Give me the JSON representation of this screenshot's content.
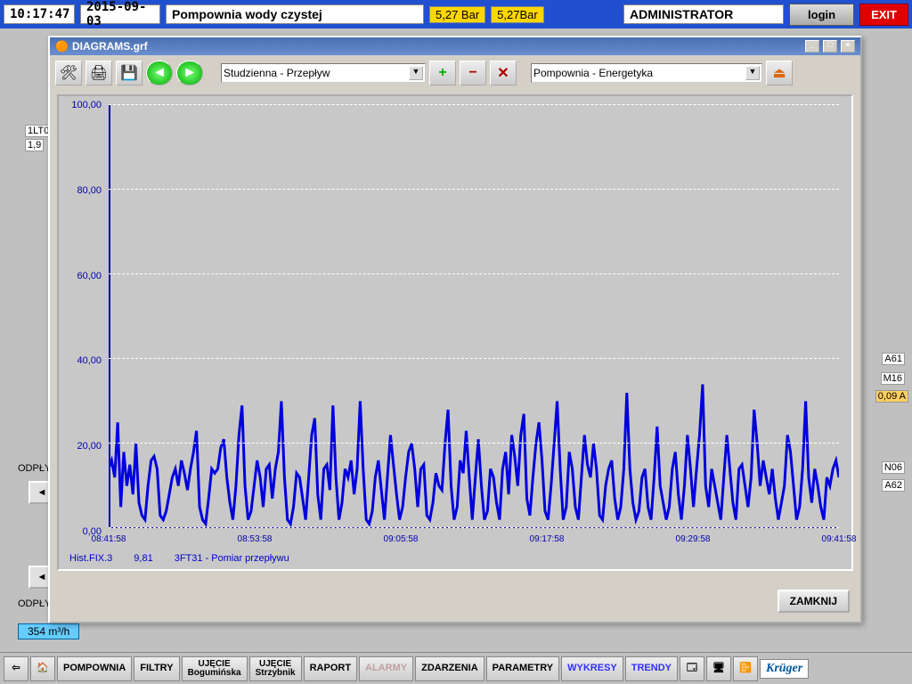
{
  "topbar": {
    "time": "10:17:47",
    "date": "2015-09-03",
    "title": "Pompownia wody czystej",
    "bar1": "5,27 Bar",
    "bar2": "5,27Bar",
    "user": "ADMINISTRATOR",
    "login": "login",
    "exit": "EXIT"
  },
  "bg": {
    "l1": "1LT0",
    "l2": "1,9",
    "l3": "ODPŁY",
    "l4": "ODPŁY",
    "flow": "354 m³/h",
    "r1": "A61",
    "r2": "M16",
    "r3": "0,09 A",
    "r3_bg": "#ffd060",
    "r4": "N06",
    "r5": "A62"
  },
  "dialog": {
    "title": "DIAGRAMS.grf",
    "dd1": "Studzienna - Przepływ",
    "dd2": "Pompownia - Energetyka",
    "close": "ZAMKNIJ"
  },
  "chart": {
    "type": "line",
    "series_color": "#0000dd",
    "label_color": "#0000aa",
    "background": "#c8c8c8",
    "grid_color": "#ffffff",
    "ylim": [
      0,
      100
    ],
    "yticks": [
      "0,00",
      "20,00",
      "40,00",
      "60,00",
      "80,00",
      "100,00"
    ],
    "xticks": [
      "08:41:58",
      "08:53:58",
      "09:05:58",
      "09:17:58",
      "09:29:58",
      "09:41:58"
    ],
    "footer": {
      "hist": "Hist.FIX.3",
      "val": "9,81",
      "desc": "3FT31 - Pomiar przepływu"
    },
    "data": [
      14,
      16,
      12,
      25,
      5,
      18,
      10,
      15,
      8,
      20,
      6,
      3,
      2,
      10,
      16,
      17,
      14,
      3,
      2,
      4,
      8,
      12,
      14,
      10,
      16,
      13,
      9,
      14,
      18,
      23,
      5,
      2,
      1,
      7,
      14,
      13,
      14,
      19,
      21,
      12,
      6,
      2,
      10,
      22,
      29,
      10,
      2,
      4,
      10,
      16,
      12,
      5,
      14,
      15,
      7,
      14,
      18,
      30,
      12,
      2,
      1,
      5,
      13,
      12,
      7,
      2,
      12,
      22,
      26,
      8,
      2,
      14,
      15,
      9,
      29,
      12,
      2,
      6,
      14,
      12,
      16,
      8,
      14,
      30,
      14,
      2,
      1,
      4,
      12,
      16,
      9,
      2,
      12,
      22,
      15,
      8,
      2,
      5,
      12,
      18,
      20,
      14,
      5,
      14,
      15,
      3,
      2,
      6,
      13,
      10,
      9,
      20,
      28,
      10,
      2,
      5,
      16,
      13,
      23,
      12,
      2,
      12,
      21,
      10,
      2,
      4,
      14,
      12,
      6,
      2,
      14,
      18,
      8,
      22,
      17,
      10,
      22,
      27,
      7,
      3,
      12,
      20,
      25,
      16,
      4,
      2,
      10,
      20,
      30,
      14,
      2,
      5,
      18,
      14,
      5,
      2,
      12,
      22,
      15,
      12,
      20,
      14,
      3,
      2,
      10,
      14,
      16,
      7,
      2,
      5,
      14,
      32,
      14,
      6,
      2,
      4,
      12,
      14,
      5,
      2,
      12,
      24,
      10,
      6,
      2,
      5,
      14,
      18,
      8,
      2,
      10,
      22,
      14,
      5,
      14,
      22,
      34,
      10,
      5,
      14,
      10,
      6,
      2,
      12,
      22,
      14,
      6,
      2,
      14,
      15,
      10,
      5,
      12,
      28,
      20,
      10,
      16,
      12,
      8,
      14,
      7,
      2,
      6,
      10,
      22,
      18,
      10,
      2,
      5,
      14,
      30,
      12,
      6,
      14,
      10,
      5,
      2,
      12,
      10,
      14,
      16,
      12
    ]
  },
  "bottombar": {
    "items": [
      {
        "label": "POMPOWNIA"
      },
      {
        "label": "FILTRY"
      },
      {
        "label": "UJĘCIE",
        "sub": "Bogumińska"
      },
      {
        "label": "UJĘCIE",
        "sub": "Strzybnik"
      },
      {
        "label": "RAPORT"
      },
      {
        "label": "ALARMY",
        "dim": true
      },
      {
        "label": "ZDARZENIA"
      },
      {
        "label": "PARAMETRY"
      },
      {
        "label": "WYKRESY",
        "active": true
      },
      {
        "label": "TRENDY",
        "active": true
      }
    ],
    "logo": "Krüger"
  }
}
